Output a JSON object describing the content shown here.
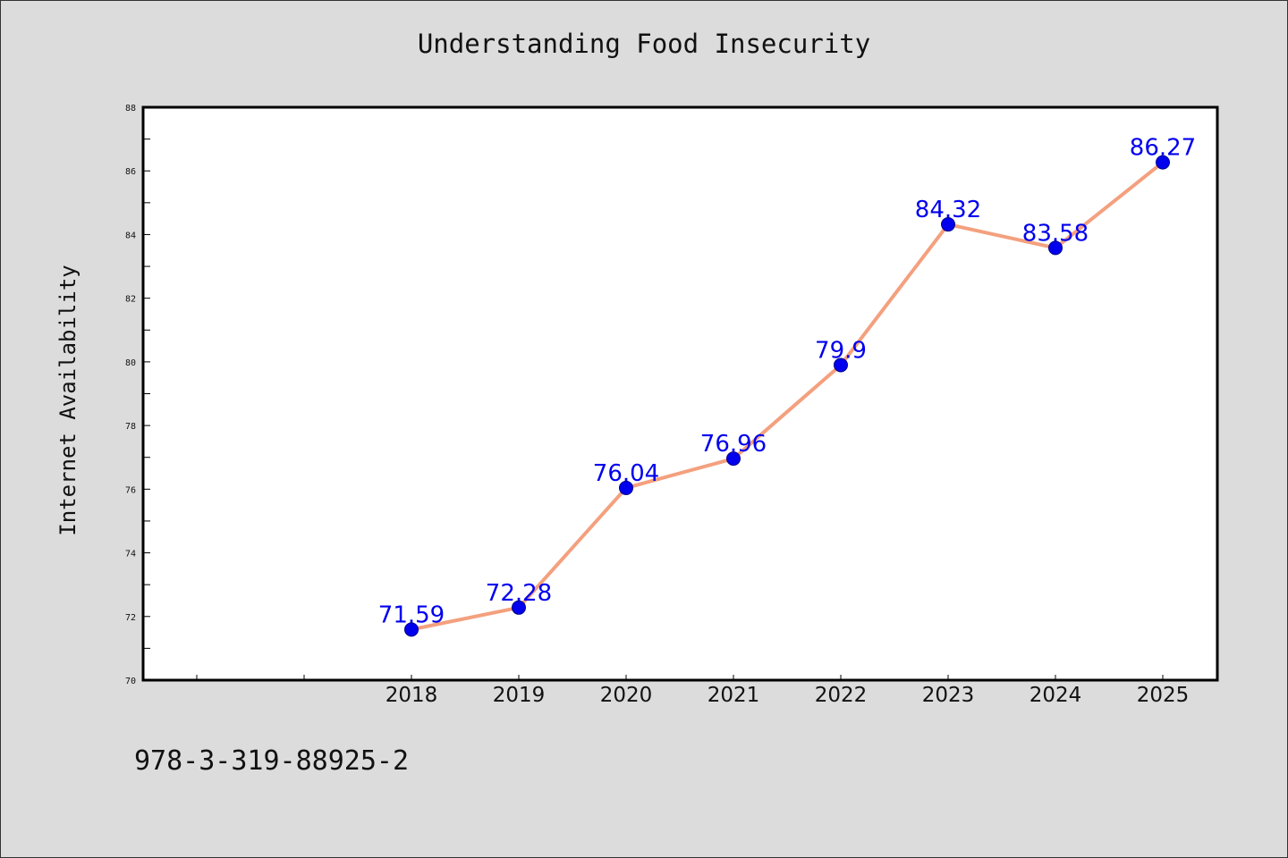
{
  "chart_data": {
    "type": "line",
    "title": "Understanding Food Insecurity",
    "xlabel": "",
    "ylabel": "Internet Availability",
    "categories": [
      "2018",
      "2019",
      "2020",
      "2021",
      "2022",
      "2023",
      "2024",
      "2025"
    ],
    "values": [
      71.59,
      72.28,
      76.04,
      76.96,
      79.9,
      84.32,
      83.58,
      86.27
    ],
    "data_labels": [
      "71.59",
      "72.28",
      "76.04",
      "76.96",
      "79.9",
      "84.32",
      "83.58",
      "86.27"
    ],
    "ylim": [
      70,
      88
    ],
    "y_ticks": [
      70,
      72,
      74,
      76,
      78,
      80,
      82,
      84,
      86,
      88
    ],
    "grid": false,
    "legend": "none",
    "colors": {
      "line": "#f4a07e",
      "marker": "#0000ee",
      "marker_edge": "#00008b",
      "label": "#0000ee",
      "plot_bg": "#ffffff",
      "page_bg": "#dcdcdc"
    }
  },
  "footer": {
    "code": "978-3-319-88925-2"
  }
}
